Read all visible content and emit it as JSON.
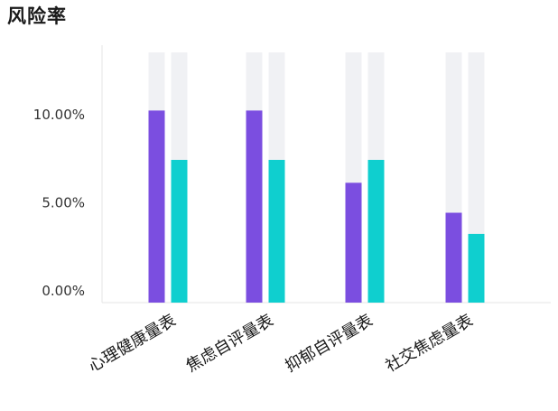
{
  "chart_data": {
    "type": "bar",
    "title": "风险率",
    "categories": [
      "心理健康量表",
      "焦虑自评量表",
      "抑郁自评量表",
      "社交焦虑量表"
    ],
    "series": [
      {
        "values": [
          10.9,
          10.9,
          6.8,
          5.1
        ],
        "color": "#7b4ee0"
      },
      {
        "values": [
          8.1,
          8.1,
          8.1,
          3.9
        ],
        "color": "#0fcfcf"
      }
    ],
    "background_track_color": "#f0f1f4",
    "y_ticks": [
      "0.00%",
      "5.00%",
      "10.00%"
    ],
    "y_tick_values": [
      0,
      5,
      10
    ],
    "ylim": [
      0,
      14.2
    ],
    "xlabel": "",
    "ylabel": "",
    "grid": false,
    "legend": "none"
  }
}
